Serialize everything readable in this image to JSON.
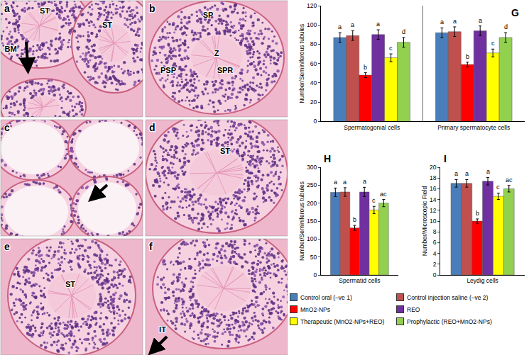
{
  "micrographs": [
    {
      "panel": "a",
      "labels": [
        "ST",
        "ST",
        "BM"
      ]
    },
    {
      "panel": "b",
      "labels": [
        "SP",
        "Z",
        "PSP",
        "SPR"
      ]
    },
    {
      "panel": "c"
    },
    {
      "panel": "d",
      "labels": [
        "ST"
      ]
    },
    {
      "panel": "e",
      "labels": [
        "ST"
      ]
    },
    {
      "panel": "f",
      "labels": [
        "IT"
      ]
    }
  ],
  "chart_data": [
    {
      "panel": "G",
      "type": "bar",
      "categories": [
        "Spermatogonial cells",
        "Primary spermatocyte cells"
      ],
      "y_label": "Number/Seminiferous tubules",
      "ylim": [
        0,
        120
      ],
      "yticks": [
        0,
        20,
        40,
        60,
        80,
        100,
        120
      ],
      "grid": false,
      "legend": "bottom",
      "series": [
        {
          "name": "Control oral (–ve 1)",
          "color": "#4a7ebb",
          "values": [
            87,
            92
          ],
          "errors": [
            5,
            5
          ],
          "letters": [
            "a",
            "a"
          ]
        },
        {
          "name": "Control injection saline (–ve 2)",
          "color": "#c0504d",
          "values": [
            89,
            93
          ],
          "errors": [
            5,
            5
          ],
          "letters": [
            "a",
            "a"
          ]
        },
        {
          "name": "MnO2-NPs",
          "color": "#ff0000",
          "values": [
            48,
            59
          ],
          "errors": [
            2.5,
            2.5
          ],
          "letters": [
            "b",
            "b"
          ]
        },
        {
          "name": "REO",
          "color": "#7030a0",
          "values": [
            90,
            94
          ],
          "errors": [
            5,
            5
          ],
          "letters": [
            "a",
            "a"
          ]
        },
        {
          "name": "Therapeutic (MnO2-NPs+REO)",
          "color": "#ffff00",
          "values": [
            66,
            71
          ],
          "errors": [
            4,
            4
          ],
          "letters": [
            "c",
            "c"
          ]
        },
        {
          "name": "Prophylactic  (REO+MnO2-NPs)",
          "color": "#92d050",
          "values": [
            82,
            87
          ],
          "errors": [
            5,
            5
          ],
          "letters": [
            "d",
            "d"
          ]
        }
      ]
    },
    {
      "panel": "H",
      "type": "bar",
      "categories": [
        "Spermatid cells"
      ],
      "y_label": "Number/Seminiferous tubules",
      "ylim": [
        0,
        300
      ],
      "yticks": [
        0,
        50,
        100,
        150,
        200,
        250,
        300
      ],
      "grid": false,
      "series": [
        {
          "name": "Control oral (–ve 1)",
          "color": "#4a7ebb",
          "values": [
            230
          ],
          "errors": [
            12
          ],
          "letters": [
            "a"
          ]
        },
        {
          "name": "Control injection saline (–ve 2)",
          "color": "#c0504d",
          "values": [
            231
          ],
          "errors": [
            12
          ],
          "letters": [
            "a"
          ]
        },
        {
          "name": "MnO2-NPs",
          "color": "#ff0000",
          "values": [
            131
          ],
          "errors": [
            7
          ],
          "letters": [
            "b"
          ]
        },
        {
          "name": "REO",
          "color": "#7030a0",
          "values": [
            231
          ],
          "errors": [
            13
          ],
          "letters": [
            "a"
          ]
        },
        {
          "name": "Therapeutic (MnO2-NPs+REO)",
          "color": "#ffff00",
          "values": [
            181
          ],
          "errors": [
            10
          ],
          "letters": [
            "c"
          ]
        },
        {
          "name": "Prophylactic  (REO+MnO2-NPs)",
          "color": "#92d050",
          "values": [
            200
          ],
          "errors": [
            10
          ],
          "letters": [
            "ac"
          ]
        }
      ]
    },
    {
      "panel": "I",
      "type": "bar",
      "categories": [
        "Leydig cells"
      ],
      "y_label": "Number/Microscopic Field",
      "ylim": [
        0,
        20
      ],
      "yticks": [
        0,
        2,
        4,
        6,
        8,
        10,
        12,
        14,
        16,
        18,
        20
      ],
      "grid": false,
      "series": [
        {
          "name": "Control oral (–ve 1)",
          "color": "#4a7ebb",
          "values": [
            17
          ],
          "errors": [
            0.7
          ],
          "letters": [
            "a"
          ]
        },
        {
          "name": "Control injection saline (–ve 2)",
          "color": "#c0504d",
          "values": [
            17
          ],
          "errors": [
            0.7
          ],
          "letters": [
            "a"
          ]
        },
        {
          "name": "MnO2-NPs",
          "color": "#ff0000",
          "values": [
            10
          ],
          "errors": [
            0.4
          ],
          "letters": [
            "b"
          ]
        },
        {
          "name": "REO",
          "color": "#7030a0",
          "values": [
            17.4
          ],
          "errors": [
            0.7
          ],
          "letters": [
            "a"
          ]
        },
        {
          "name": "Therapeutic (MnO2-NPs+REO)",
          "color": "#ffff00",
          "values": [
            14.6
          ],
          "errors": [
            0.6
          ],
          "letters": [
            "c"
          ]
        },
        {
          "name": "Prophylactic  (REO+MnO2-NPs)",
          "color": "#92d050",
          "values": [
            16
          ],
          "errors": [
            0.6
          ],
          "letters": [
            "ac"
          ]
        }
      ]
    }
  ]
}
